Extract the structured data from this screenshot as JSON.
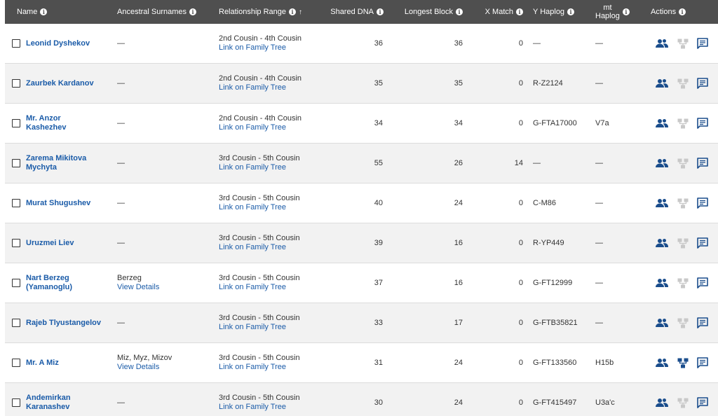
{
  "columns": {
    "name": "Name",
    "surnames": "Ancestral Surnames",
    "relationship": "Relationship Range",
    "shared_dna": "Shared DNA",
    "longest_block": "Longest Block",
    "x_match": "X Match",
    "y_haplog": "Y Haplog",
    "mt_haplog_line1": "mt",
    "mt_haplog_line2": "Haplog",
    "actions": "Actions"
  },
  "icons": {
    "info": "info-icon",
    "sort": "sort-ascending-icon",
    "profile": "people-icon",
    "tree": "family-tree-icon",
    "message": "message-icon"
  },
  "colors": {
    "header_bg": "#4f4f4f",
    "link": "#1a5ba8",
    "icon_active": "#1a4d8c",
    "icon_disabled": "#c8c8c8"
  },
  "rows": [
    {
      "name": "Leonid Dyshekov",
      "surnames": "—",
      "surnames_link": "",
      "relationship": "2nd Cousin - 4th Cousin",
      "tree_link": "Link on Family Tree",
      "shared_dna": "36",
      "longest_block": "36",
      "x_match": "0",
      "y_haplog": "—",
      "mt_haplog": "—",
      "tree_active": false
    },
    {
      "name": "Zaurbek Kardanov",
      "surnames": "—",
      "surnames_link": "",
      "relationship": "2nd Cousin - 4th Cousin",
      "tree_link": "Link on Family Tree",
      "shared_dna": "35",
      "longest_block": "35",
      "x_match": "0",
      "y_haplog": "R-Z2124",
      "mt_haplog": "—",
      "tree_active": false
    },
    {
      "name": "Mr. Anzor Kashezhev",
      "surnames": "—",
      "surnames_link": "",
      "relationship": "2nd Cousin - 4th Cousin",
      "tree_link": "Link on Family Tree",
      "shared_dna": "34",
      "longest_block": "34",
      "x_match": "0",
      "y_haplog": "G-FTA17000",
      "mt_haplog": "V7a",
      "tree_active": false
    },
    {
      "name": "Zarema Mikitova Mychyta",
      "surnames": "—",
      "surnames_link": "",
      "relationship": "3rd Cousin - 5th Cousin",
      "tree_link": "Link on Family Tree",
      "shared_dna": "55",
      "longest_block": "26",
      "x_match": "14",
      "y_haplog": "—",
      "mt_haplog": "—",
      "tree_active": false
    },
    {
      "name": "Murat Shugushev",
      "surnames": "—",
      "surnames_link": "",
      "relationship": "3rd Cousin - 5th Cousin",
      "tree_link": "Link on Family Tree",
      "shared_dna": "40",
      "longest_block": "24",
      "x_match": "0",
      "y_haplog": "C-M86",
      "mt_haplog": "—",
      "tree_active": false
    },
    {
      "name": "Uruzmei Liev",
      "surnames": "—",
      "surnames_link": "",
      "relationship": "3rd Cousin - 5th Cousin",
      "tree_link": "Link on Family Tree",
      "shared_dna": "39",
      "longest_block": "16",
      "x_match": "0",
      "y_haplog": "R-YP449",
      "mt_haplog": "—",
      "tree_active": false
    },
    {
      "name": "Nart Berzeg (Yamanoglu)",
      "surnames": "Berzeg",
      "surnames_link": "View Details",
      "relationship": "3rd Cousin - 5th Cousin",
      "tree_link": "Link on Family Tree",
      "shared_dna": "37",
      "longest_block": "16",
      "x_match": "0",
      "y_haplog": "G-FT12999",
      "mt_haplog": "—",
      "tree_active": false
    },
    {
      "name": "Rajeb Tlyustangelov",
      "surnames": "—",
      "surnames_link": "",
      "relationship": "3rd Cousin - 5th Cousin",
      "tree_link": "Link on Family Tree",
      "shared_dna": "33",
      "longest_block": "17",
      "x_match": "0",
      "y_haplog": "G-FTB35821",
      "mt_haplog": "—",
      "tree_active": false
    },
    {
      "name": "Mr. A Miz",
      "surnames": "Miz, Myz, Mizov",
      "surnames_link": "View Details",
      "relationship": "3rd Cousin - 5th Cousin",
      "tree_link": "Link on Family Tree",
      "shared_dna": "31",
      "longest_block": "24",
      "x_match": "0",
      "y_haplog": "G-FT133560",
      "mt_haplog": "H15b",
      "tree_active": true
    },
    {
      "name": "Andemirkan Karanashev",
      "surnames": "—",
      "surnames_link": "",
      "relationship": "3rd Cousin - 5th Cousin",
      "tree_link": "Link on Family Tree",
      "shared_dna": "30",
      "longest_block": "24",
      "x_match": "0",
      "y_haplog": "G-FT415497",
      "mt_haplog": "U3a'c",
      "tree_active": false
    }
  ]
}
